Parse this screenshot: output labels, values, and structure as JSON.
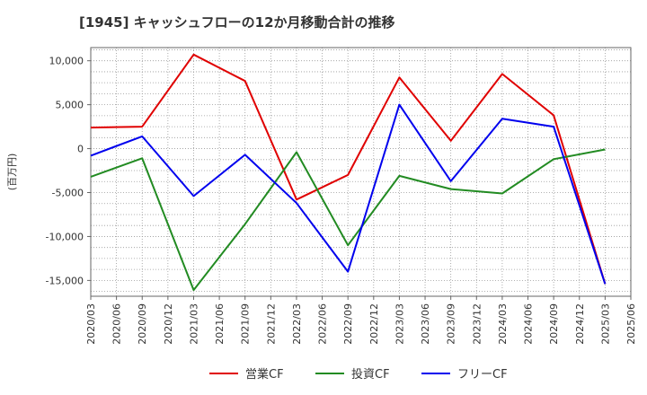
{
  "chart_data": {
    "type": "line",
    "title": "[1945]  キャッシュフローの12か月移動合計の推移",
    "ylabel": "(百万円)",
    "xlabel": "",
    "ylim": [
      -16800,
      11500
    ],
    "yticks": [
      10000,
      5000,
      0,
      -5000,
      -10000,
      -15000
    ],
    "ytick_labels": [
      "10,000",
      "5,000",
      "0",
      "-5,000",
      "-10,000",
      "-15,000"
    ],
    "categories": [
      "2020/03",
      "2020/06",
      "2020/09",
      "2020/12",
      "2021/03",
      "2021/06",
      "2021/09",
      "2021/12",
      "2022/03",
      "2022/06",
      "2022/09",
      "2022/12",
      "2023/03",
      "2023/06",
      "2023/09",
      "2023/12",
      "2024/03",
      "2024/06",
      "2024/09",
      "2024/12",
      "2025/03",
      "2025/06"
    ],
    "grid": true,
    "legend_position": "bottom",
    "series": [
      {
        "name": "営業CF",
        "color": "#e00000",
        "points": [
          [
            "2020/03",
            2400
          ],
          [
            "2020/09",
            2500
          ],
          [
            "2021/03",
            10700
          ],
          [
            "2021/09",
            7700
          ],
          [
            "2022/03",
            -5800
          ],
          [
            "2022/09",
            -3000
          ],
          [
            "2023/03",
            8100
          ],
          [
            "2023/09",
            900
          ],
          [
            "2024/03",
            8500
          ],
          [
            "2024/09",
            3800
          ],
          [
            "2025/03",
            -15400
          ]
        ]
      },
      {
        "name": "投資CF",
        "color": "#228b22",
        "points": [
          [
            "2020/03",
            -3200
          ],
          [
            "2020/09",
            -1100
          ],
          [
            "2021/03",
            -16100
          ],
          [
            "2021/09",
            -8600
          ],
          [
            "2022/03",
            -400
          ],
          [
            "2022/09",
            -11000
          ],
          [
            "2023/03",
            -3100
          ],
          [
            "2023/09",
            -4600
          ],
          [
            "2024/03",
            -5100
          ],
          [
            "2024/09",
            -1200
          ],
          [
            "2025/03",
            -100
          ]
        ]
      },
      {
        "name": "フリーCF",
        "color": "#0000ee",
        "points": [
          [
            "2020/03",
            -800
          ],
          [
            "2020/09",
            1400
          ],
          [
            "2021/03",
            -5400
          ],
          [
            "2021/09",
            -700
          ],
          [
            "2022/03",
            -6200
          ],
          [
            "2022/09",
            -14000
          ],
          [
            "2023/03",
            5000
          ],
          [
            "2023/09",
            -3700
          ],
          [
            "2024/03",
            3400
          ],
          [
            "2024/09",
            2500
          ],
          [
            "2025/03",
            -15400
          ]
        ]
      }
    ]
  }
}
